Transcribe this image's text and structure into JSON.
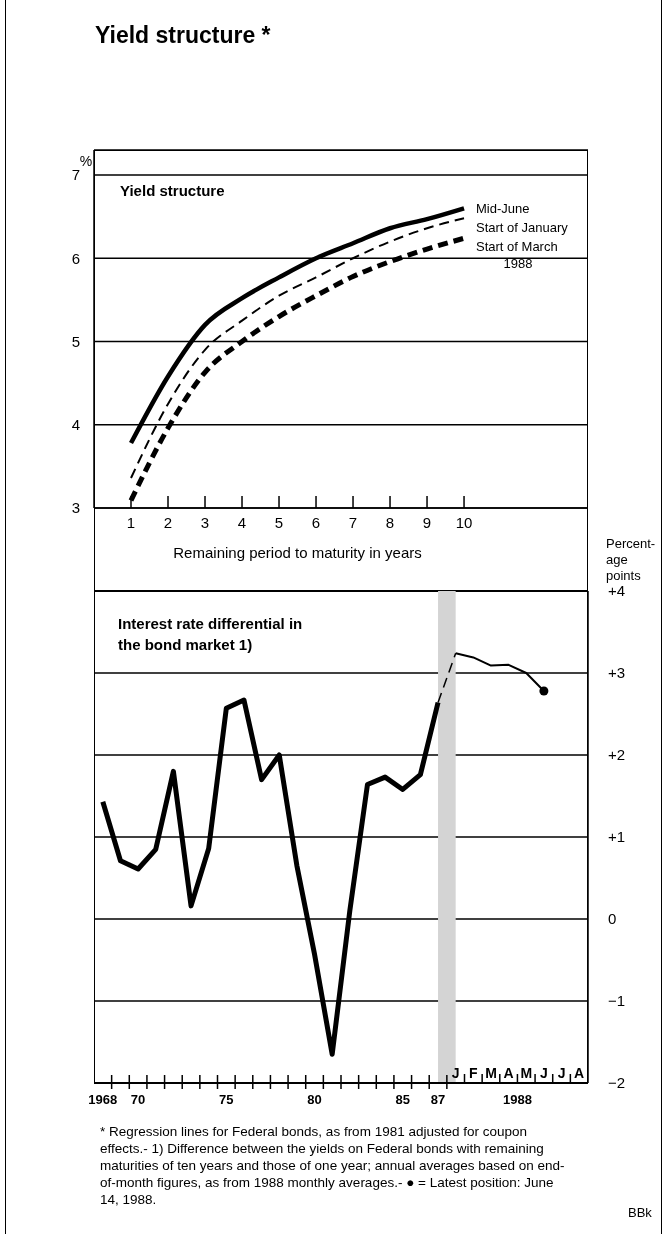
{
  "chart_data": [
    {
      "type": "line",
      "title": "Yield structure *",
      "subtitle": "Yield structure",
      "xlabel": "Remaining period to maturity in years",
      "ylabel": "%",
      "x": [
        1,
        2,
        3,
        4,
        5,
        6,
        7,
        8,
        9,
        10
      ],
      "xlim": [
        0,
        13.35
      ],
      "xticks": [
        1,
        2,
        3,
        4,
        5,
        6,
        7,
        8,
        9,
        10
      ],
      "ylim": [
        3,
        7.3
      ],
      "yticks": [
        3,
        4,
        5,
        6,
        7
      ],
      "grid": "y",
      "series": [
        {
          "name": "Mid-June",
          "color": "#000000",
          "line_style": "solid",
          "values": [
            3.78,
            4.58,
            5.2,
            5.52,
            5.77,
            6.0,
            6.18,
            6.36,
            6.47,
            6.6
          ]
        },
        {
          "name": "Start of January",
          "color": "#000000",
          "line_style": "dashed",
          "values": [
            3.36,
            4.25,
            4.9,
            5.25,
            5.55,
            5.77,
            6.0,
            6.2,
            6.36,
            6.48
          ]
        },
        {
          "name": "Start of March",
          "color": "#000000",
          "line_style": "dashed",
          "values": [
            3.09,
            3.96,
            4.63,
            5.0,
            5.3,
            5.55,
            5.78,
            5.96,
            6.11,
            6.24
          ]
        }
      ],
      "annotations": [
        "1988"
      ]
    },
    {
      "type": "line",
      "title": "Interest rate differential in the bond market 1)",
      "ylabel": "Percent- age points",
      "categories": [
        "1968",
        null,
        "70",
        null,
        null,
        null,
        null,
        "75",
        null,
        null,
        null,
        null,
        "80",
        null,
        null,
        null,
        null,
        "85",
        null,
        "87",
        "J",
        "F",
        "M",
        "A",
        "M",
        "J",
        "J",
        "A"
      ],
      "ylim": [
        -2,
        4
      ],
      "yticks": [
        {
          "value": -2,
          "label": "−2"
        },
        {
          "value": -1,
          "label": "−1"
        },
        0,
        {
          "value": 1,
          "label": "+1"
        },
        {
          "value": 2,
          "label": "+2"
        },
        {
          "value": 3,
          "label": "+3"
        },
        {
          "value": 4,
          "label": "+4"
        }
      ],
      "grid": "y",
      "bands": [
        {
          "axis": "x",
          "from": "87",
          "to": "J",
          "color": "#d4d4d4"
        }
      ],
      "series": [
        {
          "color": "#000000",
          "line_style": "solid",
          "values": [
            1.43,
            0.71,
            0.61,
            0.85,
            1.8,
            0.16,
            0.86,
            2.57,
            2.67,
            1.7,
            2.0,
            0.65,
            -0.43,
            -1.65,
            0.1,
            1.64,
            1.73,
            1.58,
            1.76,
            2.64,
            null,
            null,
            null,
            null,
            null,
            null,
            null,
            null
          ]
        },
        {
          "color": "#000000",
          "line_style": "dashed",
          "values": [
            null,
            null,
            null,
            null,
            null,
            null,
            null,
            null,
            null,
            null,
            null,
            null,
            null,
            null,
            null,
            null,
            null,
            null,
            null,
            2.64,
            3.24,
            null,
            null,
            null,
            null,
            null,
            null,
            null
          ]
        },
        {
          "color": "#000000",
          "line_style": "solid",
          "values": [
            null,
            null,
            null,
            null,
            null,
            null,
            null,
            null,
            null,
            null,
            null,
            null,
            null,
            null,
            null,
            null,
            null,
            null,
            null,
            null,
            3.24,
            3.19,
            3.09,
            3.1,
            3.0,
            2.78,
            null,
            null
          ]
        },
        {
          "type": "scatter",
          "marker": "circle",
          "color": "#000000",
          "values": [
            null,
            null,
            null,
            null,
            null,
            null,
            null,
            null,
            null,
            null,
            null,
            null,
            null,
            null,
            null,
            null,
            null,
            null,
            null,
            null,
            null,
            null,
            null,
            null,
            null,
            2.78,
            null,
            null
          ]
        }
      ],
      "annotations": [
        "1988",
        "* Regression lines for Federal bonds, as from 1981 adjusted for coupon effects.- 1) Difference between the yields on Federal bonds with remaining maturities of ten years and those of one year; annual averages based on end-of-month figures, as from 1988 monthly averages.- ● = Latest position: June 14, 1988.",
        "BBk"
      ]
    }
  ]
}
